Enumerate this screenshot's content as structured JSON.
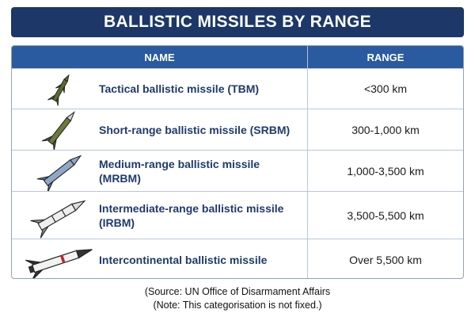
{
  "header": {
    "title": "BALLISTIC MISSILES BY RANGE"
  },
  "table": {
    "columns": [
      "NAME",
      "RANGE"
    ],
    "rows": [
      [
        "Tactical ballistic missile (TBM)",
        "<300 km"
      ],
      [
        "Short-range ballistic missile (SRBM)",
        "300-1,000 km"
      ],
      [
        "Medium-range ballistic missile (MRBM)",
        "1,000-3,500 km"
      ],
      [
        "Intermediate-range ballistic missile (IRBM)",
        "3,500-5,500 km"
      ],
      [
        "Intercontinental ballistic missile",
        "Over 5,500 km"
      ]
    ]
  },
  "footer": {
    "lines": [
      "(Source: UN Office of Disarmament Affairs",
      "(Note: This categorisation is not fixed.)"
    ]
  }
}
